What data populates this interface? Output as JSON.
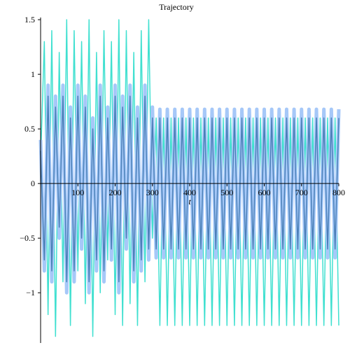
{
  "chart_data": {
    "type": "line",
    "title": "Trajectory",
    "x_label": "t",
    "x": [
      0,
      10,
      20,
      30,
      40,
      50,
      60,
      70,
      80,
      90,
      100,
      110,
      120,
      130,
      140,
      150,
      160,
      170,
      180,
      190,
      200,
      210,
      220,
      230,
      240,
      250,
      260,
      270,
      280,
      290,
      300,
      310,
      320,
      330,
      340,
      350,
      360,
      370,
      380,
      390,
      400,
      410,
      420,
      430,
      440,
      450,
      460,
      470,
      480,
      490,
      500,
      510,
      520,
      530,
      540,
      550,
      560,
      570,
      580,
      590,
      600,
      610,
      620,
      630,
      640,
      650,
      660,
      670,
      680,
      690,
      700,
      710,
      720,
      730,
      740,
      750,
      760,
      770,
      780,
      790,
      800
    ],
    "series": [
      {
        "color": "#40e0d0",
        "width": 1.5,
        "values": [
          0.2,
          1.3,
          -1.2,
          1.4,
          -1.4,
          1.2,
          -0.9,
          1.5,
          -1.3,
          1.4,
          -0.8,
          1.3,
          -1.1,
          1.5,
          -1.4,
          1.2,
          -1.0,
          1.4,
          -0.7,
          1.3,
          -1.2,
          1.5,
          -1.3,
          1.4,
          -1.1,
          1.2,
          -1.3,
          1.4,
          -0.9,
          1.5,
          -0.5,
          0.6,
          -1.3,
          0.6,
          -1.3,
          0.6,
          -1.3,
          0.6,
          -1.3,
          0.6,
          -1.3,
          0.6,
          -1.3,
          0.6,
          -1.3,
          0.6,
          -1.3,
          0.6,
          -1.3,
          0.6,
          -1.3,
          0.6,
          -1.3,
          0.6,
          -1.3,
          0.6,
          -1.3,
          0.6,
          -1.3,
          0.6,
          -1.3,
          0.6,
          -1.3,
          0.6,
          -1.3,
          0.6,
          -1.3,
          0.6,
          -1.3,
          0.6,
          -1.3,
          0.6,
          -1.3,
          0.6,
          -1.3,
          0.6,
          -1.3,
          0.6,
          -1.3,
          0.6,
          -1.3
        ]
      },
      {
        "color": "#a6c8f8",
        "width": 5,
        "values": [
          0.4,
          -0.8,
          0.9,
          -0.9,
          0.8,
          -0.5,
          0.9,
          -1.0,
          0.7,
          -0.9,
          0.9,
          -0.6,
          0.8,
          -1.0,
          0.6,
          -0.8,
          0.9,
          -0.9,
          0.7,
          -0.7,
          0.9,
          -1.0,
          0.8,
          -0.6,
          0.9,
          -0.9,
          0.7,
          -0.8,
          0.9,
          -0.7,
          0.7,
          -0.68,
          0.68,
          -0.68,
          0.68,
          -0.68,
          0.68,
          -0.68,
          0.68,
          -0.68,
          0.68,
          -0.68,
          0.68,
          -0.68,
          0.68,
          -0.68,
          0.68,
          -0.68,
          0.68,
          -0.68,
          0.68,
          -0.68,
          0.68,
          -0.68,
          0.68,
          -0.68,
          0.68,
          -0.68,
          0.68,
          -0.68,
          0.68,
          -0.68,
          0.68,
          -0.68,
          0.68,
          -0.68,
          0.68,
          -0.68,
          0.68,
          -0.68,
          0.68,
          -0.68,
          0.68,
          -0.68,
          0.68,
          -0.68,
          0.68,
          -0.68,
          0.68,
          -0.68,
          0.68
        ]
      },
      {
        "color": "#4a80b8",
        "width": 1.5,
        "values": [
          0.3,
          -0.7,
          0.8,
          -0.8,
          0.7,
          -0.4,
          0.8,
          -0.9,
          0.6,
          -0.8,
          0.8,
          -0.5,
          0.7,
          -0.9,
          0.5,
          -0.7,
          0.8,
          -0.8,
          0.6,
          -0.6,
          0.8,
          -0.9,
          0.7,
          -0.5,
          0.8,
          -0.8,
          0.6,
          -0.7,
          0.8,
          -0.6,
          0.6,
          -0.6,
          0.6,
          -0.6,
          0.6,
          -0.6,
          0.6,
          -0.6,
          0.6,
          -0.6,
          0.6,
          -0.6,
          0.6,
          -0.6,
          0.6,
          -0.6,
          0.6,
          -0.6,
          0.6,
          -0.6,
          0.6,
          -0.6,
          0.6,
          -0.6,
          0.6,
          -0.6,
          0.6,
          -0.6,
          0.6,
          -0.6,
          0.6,
          -0.6,
          0.6,
          -0.6,
          0.6,
          -0.6,
          0.6,
          -0.6,
          0.6,
          -0.6,
          0.6,
          -0.6,
          0.6,
          -0.6,
          0.6,
          -0.6,
          0.6,
          -0.6,
          0.6,
          -0.6,
          0.6
        ]
      }
    ],
    "xlim": [
      0,
      800
    ],
    "xticks": [
      100,
      200,
      300,
      400,
      500,
      600,
      700,
      800
    ],
    "ylim": [
      -1.46,
      1.52
    ],
    "yticks": [
      {
        "value": -1,
        "label": "−1"
      },
      {
        "value": -0.5,
        "label": "−0.5"
      },
      0,
      0.5,
      1,
      1.5
    ]
  }
}
